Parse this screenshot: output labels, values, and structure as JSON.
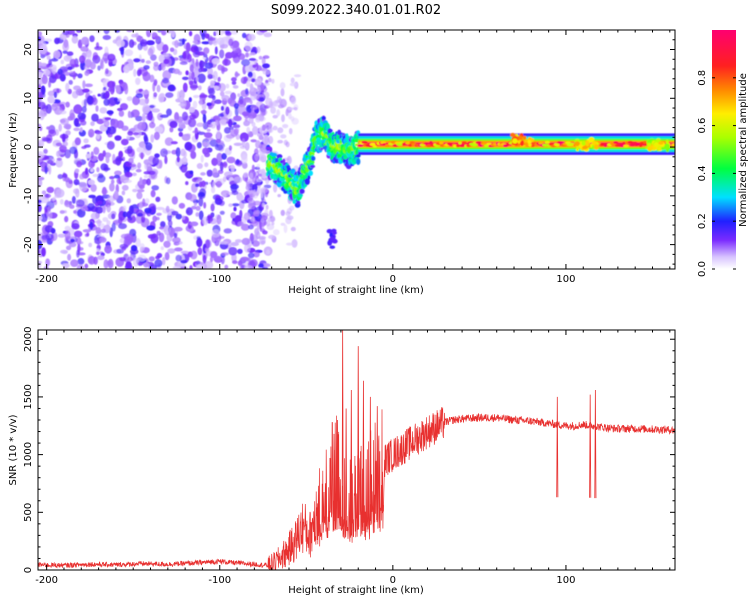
{
  "title": "S099.2022.340.01.01.R02",
  "chart_data": [
    {
      "type": "heatmap",
      "xlabel": "Height of straight line (km)",
      "ylabel": "Frequency (Hz)",
      "xlim": [
        -205,
        163
      ],
      "ylim": [
        -25,
        24
      ],
      "x_ticks": [
        -200,
        -100,
        0,
        100
      ],
      "y_ticks": [
        -20,
        -10,
        0,
        10,
        20
      ],
      "colorbar": {
        "label": "Normalized spectral amplitude",
        "range": [
          0,
          1
        ],
        "ticks": [
          0.0,
          0.2,
          0.4,
          0.6,
          0.8
        ]
      },
      "regions": [
        {
          "name": "noise",
          "x_range": [
            -205,
            -72
          ],
          "y_range": [
            -25,
            24
          ],
          "amplitude": 0.08
        },
        {
          "name": "transition",
          "x_range": [
            -72,
            -20
          ],
          "amplitude": 0.4,
          "centerline": [
            [
              -72,
              -3
            ],
            [
              -65,
              -5
            ],
            [
              -60,
              -7
            ],
            [
              -55,
              -9
            ],
            [
              -52,
              -6
            ],
            [
              -48,
              -3
            ],
            [
              -44,
              2
            ],
            [
              -40,
              3
            ],
            [
              -35,
              0
            ],
            [
              -30,
              0
            ],
            [
              -25,
              -1
            ],
            [
              -20,
              0
            ]
          ]
        },
        {
          "name": "signal",
          "x_range": [
            -20,
            163
          ],
          "frequency": 0.6,
          "amplitude": 0.95
        }
      ],
      "patches": [
        {
          "x": -35,
          "y": -19,
          "amplitude": 0.2
        },
        {
          "x": 75,
          "y": 1.5,
          "amplitude": 0.85
        },
        {
          "x": 112,
          "y": 0.5,
          "amplitude": 0.75
        },
        {
          "x": 153,
          "y": 0.5,
          "amplitude": 0.7
        }
      ]
    },
    {
      "type": "line",
      "xlabel": "Height of straight line (km)",
      "ylabel": "SNR (10 * v/v)",
      "xlim": [
        -205,
        163
      ],
      "ylim": [
        0,
        2080
      ],
      "x_ticks": [
        -200,
        -100,
        0,
        100
      ],
      "y_ticks": [
        0,
        500,
        1000,
        1500,
        2000
      ],
      "color": "#e8302f",
      "series": [
        {
          "x": [
            -205,
            -190,
            -175,
            -160,
            -145,
            -130,
            -115,
            -100,
            -90,
            -80,
            -72,
            -68,
            -64,
            -60,
            -56,
            -52,
            -48,
            -44,
            -40,
            -36,
            -32,
            -28,
            -24,
            -20,
            -16,
            -12,
            -8,
            -4,
            0,
            5,
            10,
            15,
            20,
            25,
            30,
            35,
            40,
            50,
            60,
            70,
            80,
            90,
            95,
            100,
            105,
            110,
            115,
            120,
            125,
            130,
            140,
            150,
            160,
            163
          ],
          "y": [
            45,
            40,
            50,
            45,
            55,
            50,
            60,
            75,
            60,
            50,
            40,
            70,
            120,
            180,
            260,
            380,
            300,
            520,
            600,
            800,
            900,
            700,
            600,
            750,
            650,
            820,
            880,
            960,
            1000,
            1050,
            1100,
            1150,
            1200,
            1240,
            1280,
            1300,
            1310,
            1320,
            1320,
            1300,
            1290,
            1270,
            1260,
            1250,
            1250,
            1260,
            1250,
            1240,
            1230,
            1225,
            1225,
            1220,
            1215,
            1210
          ]
        }
      ],
      "spikes": [
        {
          "x": -34,
          "y": 1180
        },
        {
          "x": -32,
          "y": 1300
        },
        {
          "x": -29,
          "y": 2080
        },
        {
          "x": -27,
          "y": 1400
        },
        {
          "x": -24,
          "y": 1560
        },
        {
          "x": -20,
          "y": 1940
        },
        {
          "x": -17,
          "y": 1640
        },
        {
          "x": -13,
          "y": 1500
        },
        {
          "x": -9,
          "y": 1420
        },
        {
          "x": 95,
          "y": 1500
        },
        {
          "x": 114,
          "y": 1520
        },
        {
          "x": 117,
          "y": 1560
        }
      ]
    }
  ]
}
